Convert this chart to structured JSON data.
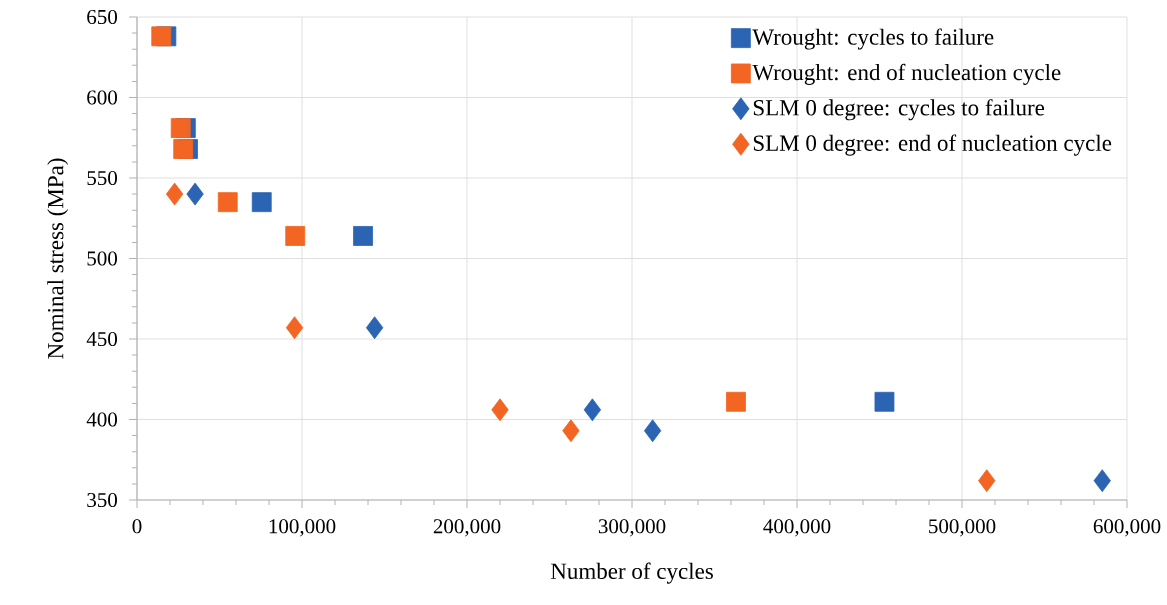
{
  "chart_data": {
    "type": "scatter",
    "xlabel": "Number of cycles",
    "ylabel": "Nominal stress (MPa)",
    "xlim": [
      0,
      600000
    ],
    "ylim": [
      350,
      650
    ],
    "xticks": [
      {
        "value": 0,
        "label": "0"
      },
      {
        "value": 100000,
        "label": "100,000"
      },
      {
        "value": 200000,
        "label": "200,000"
      },
      {
        "value": 300000,
        "label": "300,000"
      },
      {
        "value": 400000,
        "label": "400,000"
      },
      {
        "value": 500000,
        "label": "500,000"
      },
      {
        "value": 600000,
        "label": "600,000"
      }
    ],
    "yticks": [
      350,
      400,
      450,
      500,
      550,
      600,
      650
    ],
    "grid": true,
    "legend": "top right",
    "series": [
      {
        "name": "Wrought: cycles to failure",
        "color": "#2b64b2",
        "marker": "square",
        "x": [
          17800,
          29600,
          30900,
          75600,
          137000,
          453000
        ],
        "values": [
          638,
          581,
          568,
          535,
          514,
          411
        ]
      },
      {
        "name": "Wrought: end of nucleation cycle",
        "color": "#f26522",
        "marker": "square",
        "x": [
          14700,
          26500,
          28000,
          55000,
          95900,
          363000
        ],
        "values": [
          638,
          581,
          568,
          535,
          514,
          411
        ]
      },
      {
        "name": "SLM 0 degree: cycles to failure",
        "color": "#2b64b2",
        "marker": "diamond",
        "x": [
          35200,
          144000,
          276000,
          312500,
          585000
        ],
        "values": [
          540,
          457,
          406,
          393,
          362
        ]
      },
      {
        "name": "SLM 0 degree: end of nucleation cycle",
        "color": "#f26522",
        "marker": "diamond",
        "x": [
          22800,
          95500,
          220000,
          263000,
          515000
        ],
        "values": [
          540,
          457,
          406,
          393,
          362
        ]
      }
    ]
  }
}
